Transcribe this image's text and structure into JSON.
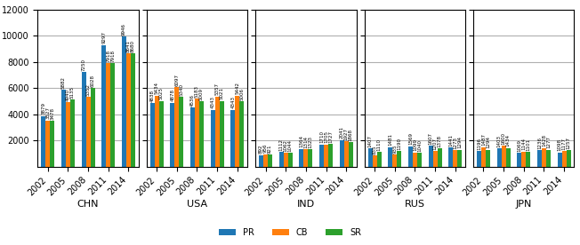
{
  "chart_data": [
    {
      "type": "bar",
      "x_label": "CHN",
      "categories": [
        "2002",
        "2005",
        "2008",
        "2011",
        "2014"
      ],
      "series": [
        {
          "name": "PR",
          "values": [
            3879,
            5882,
            7250,
            9297,
            9946
          ]
        },
        {
          "name": "CB",
          "values": [
            3527,
            4940,
            5352,
            7918,
            8641
          ]
        },
        {
          "name": "SR",
          "values": [
            3478,
            5135,
            6028,
            7918,
            8680
          ]
        }
      ],
      "ylim": [
        0,
        12000
      ],
      "yticks": [
        2000,
        4000,
        6000,
        8000,
        10000,
        12000
      ],
      "grid": true,
      "data_labels": true,
      "legend": "lower center"
    },
    {
      "type": "bar",
      "x_label": "USA",
      "categories": [
        "2002",
        "2005",
        "2008",
        "2011",
        "2014"
      ],
      "series": [
        {
          "name": "PR",
          "values": [
            4838,
            4878,
            4536,
            4343,
            4343
          ]
        },
        {
          "name": "CB",
          "values": [
            5434,
            6097,
            5183,
            5357,
            5442
          ]
        },
        {
          "name": "SR",
          "values": [
            5025,
            5340,
            5009,
            5021,
            5006
          ]
        }
      ],
      "ylim": [
        0,
        12000
      ],
      "yticks": [
        2000,
        4000,
        6000,
        8000,
        10000,
        12000
      ],
      "grid": true,
      "data_labels": true,
      "legend": "lower center",
      "tick_labels": "x"
    },
    {
      "type": "bar",
      "x_label": "IND",
      "categories": [
        "2002",
        "2005",
        "2008",
        "2011",
        "2014"
      ],
      "series": [
        {
          "name": "PR",
          "values": [
            892,
            1112,
            1364,
            1710,
            2041
          ]
        },
        {
          "name": "CB",
          "values": [
            956,
            1062,
            1314,
            1705,
            1927
          ]
        },
        {
          "name": "SR",
          "values": [
            921,
            1044,
            1323,
            1727,
            1868
          ]
        }
      ],
      "ylim": [
        0,
        12000
      ],
      "yticks": [
        2000,
        4000,
        6000,
        8000,
        10000,
        12000
      ],
      "grid": true,
      "data_labels": true,
      "legend": "lower center",
      "tick_labels": "x"
    },
    {
      "type": "bar",
      "x_label": "RUS",
      "categories": [
        "2002",
        "2005",
        "2008",
        "2011",
        "2014"
      ],
      "series": [
        {
          "name": "PR",
          "values": [
            1407,
            1481,
            1569,
            1607,
            1441
          ]
        },
        {
          "name": "CB",
          "values": [
            835,
            935,
            1099,
            1207,
            1273
          ]
        },
        {
          "name": "SR",
          "values": [
            1110,
            1190,
            1040,
            1378,
            1294
          ]
        }
      ],
      "ylim": [
        0,
        12000
      ],
      "yticks": [
        2000,
        4000,
        6000,
        8000,
        10000,
        12000
      ],
      "grid": true,
      "data_labels": true,
      "legend": "lower center",
      "tick_labels": "x"
    },
    {
      "type": "bar",
      "x_label": "JPN",
      "categories": [
        "2002",
        "2005",
        "2008",
        "2011",
        "2014"
      ],
      "series": [
        {
          "name": "PR",
          "values": [
            1196,
            1403,
            1069,
            1236,
            1098
          ]
        },
        {
          "name": "CB",
          "values": [
            1487,
            1600,
            1144,
            1428,
            1177
          ]
        },
        {
          "name": "SR",
          "values": [
            1294,
            1434,
            1101,
            1277,
            1257
          ]
        }
      ],
      "ylim": [
        0,
        12000
      ],
      "yticks": [
        2000,
        4000,
        6000,
        8000,
        10000,
        12000
      ],
      "grid": true,
      "data_labels": true,
      "legend": "lower center",
      "tick_labels": "x"
    }
  ]
}
